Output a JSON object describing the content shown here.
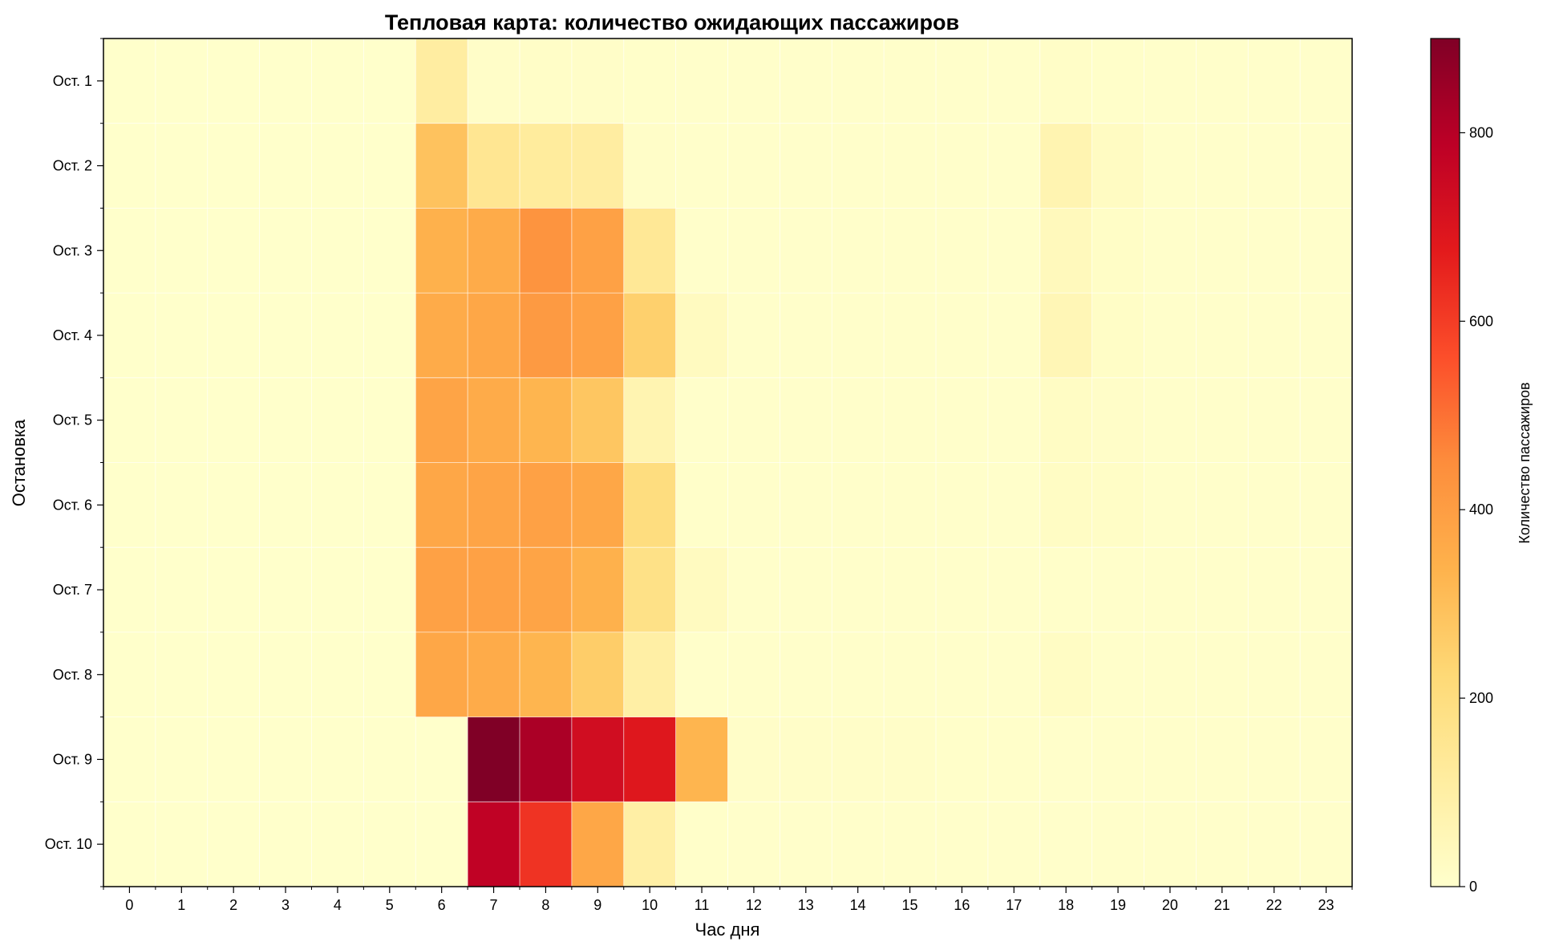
{
  "chart_data": {
    "type": "heatmap",
    "title": "Тепловая карта: количество ожидающих пассажиров",
    "xlabel": "Час дня",
    "ylabel": "Остановка",
    "x": [
      "0",
      "1",
      "2",
      "3",
      "4",
      "5",
      "6",
      "7",
      "8",
      "9",
      "10",
      "11",
      "12",
      "13",
      "14",
      "15",
      "16",
      "17",
      "18",
      "19",
      "20",
      "21",
      "22",
      "23"
    ],
    "y": [
      "Ост. 1",
      "Ост. 2",
      "Ост. 3",
      "Ост. 4",
      "Ост. 5",
      "Ост. 6",
      "Ост. 7",
      "Ост. 8",
      "Ост. 9",
      "Ост. 10"
    ],
    "values": [
      [
        2,
        2,
        2,
        2,
        2,
        2,
        110,
        10,
        12,
        10,
        8,
        5,
        5,
        5,
        5,
        5,
        5,
        5,
        12,
        8,
        5,
        5,
        5,
        5
      ],
      [
        2,
        2,
        2,
        2,
        2,
        2,
        290,
        150,
        120,
        110,
        10,
        5,
        5,
        5,
        5,
        5,
        5,
        5,
        70,
        25,
        5,
        5,
        5,
        5
      ],
      [
        2,
        2,
        2,
        2,
        2,
        2,
        340,
        360,
        430,
        390,
        140,
        5,
        5,
        5,
        5,
        5,
        5,
        5,
        40,
        15,
        5,
        5,
        5,
        5
      ],
      [
        2,
        2,
        2,
        2,
        2,
        2,
        360,
        370,
        410,
        390,
        250,
        30,
        5,
        5,
        5,
        5,
        5,
        5,
        55,
        15,
        5,
        5,
        5,
        5
      ],
      [
        2,
        2,
        2,
        2,
        2,
        2,
        380,
        360,
        330,
        280,
        70,
        5,
        5,
        5,
        5,
        5,
        5,
        5,
        20,
        10,
        5,
        5,
        5,
        5
      ],
      [
        2,
        2,
        2,
        2,
        2,
        2,
        370,
        380,
        390,
        370,
        200,
        8,
        5,
        5,
        5,
        5,
        5,
        5,
        20,
        15,
        5,
        5,
        5,
        5
      ],
      [
        2,
        2,
        2,
        2,
        2,
        2,
        390,
        390,
        380,
        340,
        180,
        30,
        5,
        5,
        5,
        5,
        5,
        5,
        8,
        5,
        5,
        5,
        5,
        5
      ],
      [
        2,
        2,
        2,
        2,
        2,
        2,
        370,
        360,
        330,
        260,
        100,
        5,
        5,
        5,
        5,
        5,
        5,
        5,
        20,
        5,
        5,
        5,
        5,
        5
      ],
      [
        2,
        2,
        2,
        2,
        2,
        2,
        2,
        900,
        820,
        730,
        690,
        330,
        10,
        10,
        10,
        10,
        8,
        8,
        5,
        5,
        5,
        5,
        5,
        5
      ],
      [
        2,
        2,
        2,
        2,
        2,
        2,
        2,
        780,
        620,
        370,
        100,
        8,
        5,
        5,
        5,
        5,
        5,
        5,
        5,
        5,
        5,
        5,
        5,
        5
      ]
    ],
    "colorbar": {
      "label": "Количество пассажиров",
      "min": 0,
      "max": 900,
      "ticks": [
        0,
        200,
        400,
        600,
        800
      ],
      "colormap": "YlOrRd",
      "colors": [
        "#ffffcc",
        "#ffeda0",
        "#fed976",
        "#feb24c",
        "#fd8d3c",
        "#fc4e2a",
        "#e31a1c",
        "#bd0026",
        "#800026"
      ]
    },
    "grid": true
  }
}
